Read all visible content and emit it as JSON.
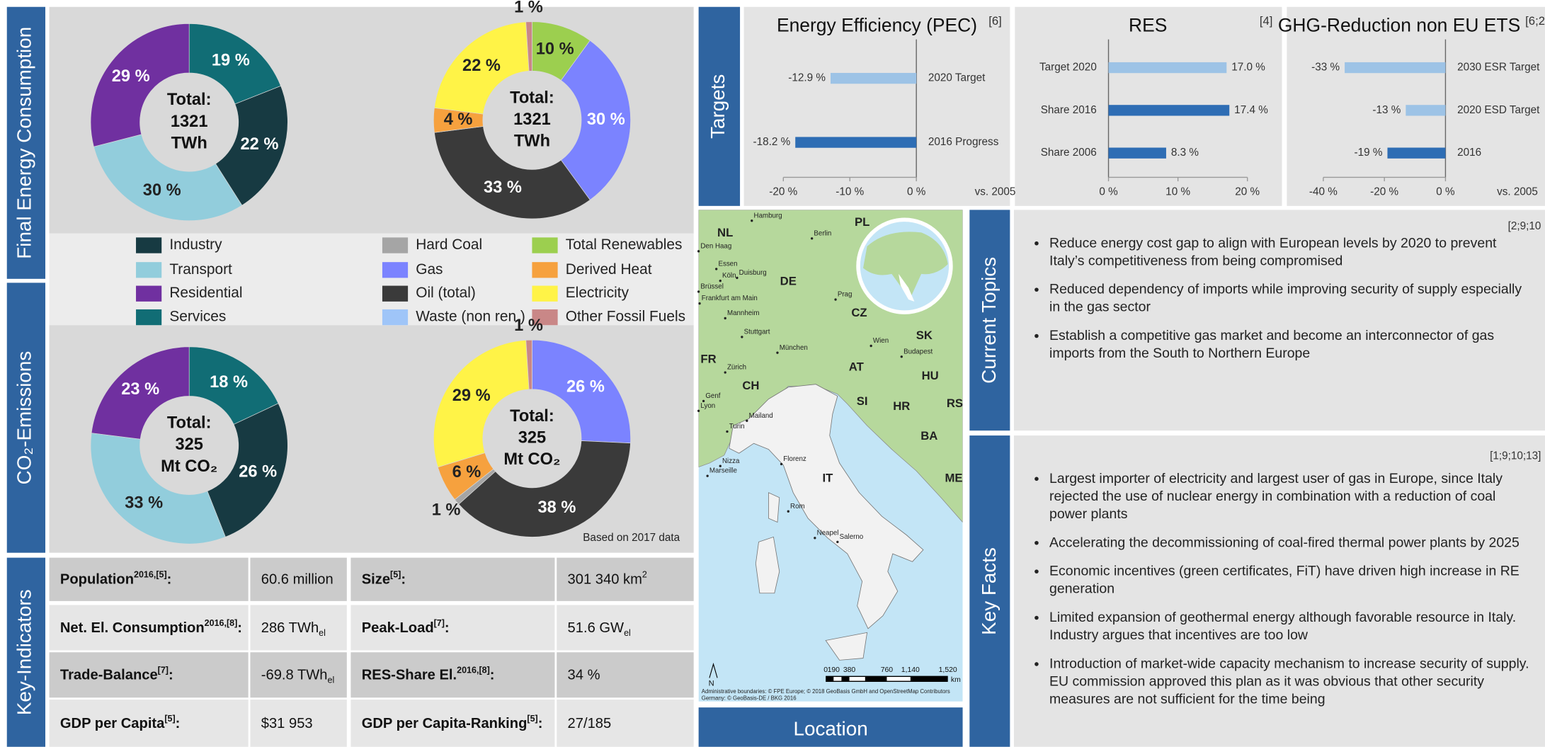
{
  "sections": {
    "final_energy": "Final Energy Consumption",
    "co2": "CO₂-Emissions",
    "key_indicators": "Key-Indicators",
    "targets": "Targets",
    "current_topics": "Current Topics",
    "key_facts": "Key Facts",
    "location": "Location"
  },
  "legend": [
    {
      "name": "Industry",
      "color": "#173a42"
    },
    {
      "name": "Transport",
      "color": "#92cddc"
    },
    {
      "name": "Residential",
      "color": "#7030a0"
    },
    {
      "name": "Services",
      "color": "#116d75"
    },
    {
      "name": "Hard Coal",
      "color": "#a5a5a5"
    },
    {
      "name": "Gas",
      "color": "#7b83ff"
    },
    {
      "name": "Oil (total)",
      "color": "#3a3a3a"
    },
    {
      "name": "Waste (non ren.)",
      "color": "#9fc5f8"
    },
    {
      "name": "Total Renewables",
      "color": "#9ccf4f"
    },
    {
      "name": "Derived Heat",
      "color": "#f6a13e"
    },
    {
      "name": "Electricity",
      "color": "#fff347"
    },
    {
      "name": "Other Fossil Fuels",
      "color": "#c98787"
    }
  ],
  "chart_data": [
    {
      "type": "pie",
      "labels": [
        "Services",
        "Industry",
        "Transport",
        "Residential"
      ],
      "values": [
        19,
        22,
        30,
        29
      ],
      "value_labels": [
        "19 %",
        "22 %",
        "30 %",
        "29 %"
      ],
      "colors": [
        "#116d75",
        "#173a42",
        "#92cddc",
        "#7030a0"
      ],
      "center_label": [
        "Total:",
        "1321",
        "TWh"
      ]
    },
    {
      "type": "pie",
      "labels": [
        "Total Renewables",
        "Gas",
        "Oil (total)",
        "Derived Heat",
        "Electricity",
        "Other Fossil Fuels"
      ],
      "values": [
        10,
        30,
        33,
        4,
        22,
        1
      ],
      "value_labels": [
        "10 %",
        "30 %",
        "33 %",
        "4 %",
        "22 %",
        "1 %"
      ],
      "colors": [
        "#9ccf4f",
        "#7b83ff",
        "#3a3a3a",
        "#f6a13e",
        "#fff347",
        "#c98787"
      ],
      "center_label": [
        "Total:",
        "1321",
        "TWh"
      ]
    },
    {
      "type": "pie",
      "labels": [
        "Services",
        "Industry",
        "Transport",
        "Residential"
      ],
      "values": [
        18,
        26,
        33,
        23
      ],
      "value_labels": [
        "18 %",
        "26 %",
        "33 %",
        "23 %"
      ],
      "colors": [
        "#116d75",
        "#173a42",
        "#92cddc",
        "#7030a0"
      ],
      "center_label": [
        "Total:",
        "325",
        "Mt CO₂"
      ]
    },
    {
      "type": "pie",
      "labels": [
        "Gas",
        "Oil (total)",
        "Hard Coal",
        "Derived Heat",
        "Electricity",
        "Other Fossil Fuels"
      ],
      "values": [
        26,
        38,
        1,
        6,
        29,
        1
      ],
      "value_labels": [
        "26 %",
        "38 %",
        "1 %",
        "6 %",
        "29 %",
        "1 %"
      ],
      "colors": [
        "#7b83ff",
        "#3a3a3a",
        "#a5a5a5",
        "#f6a13e",
        "#fff347",
        "#c98787"
      ],
      "center_label": [
        "Total:",
        "325",
        "Mt CO₂"
      ],
      "note": "Based on 2017 data"
    },
    {
      "type": "bar",
      "title": "Energy Efficiency (PEC)",
      "ref": "[6]",
      "categories": [
        "2020 Target",
        "2016 Progress"
      ],
      "values": [
        -12.9,
        -18.2
      ],
      "value_labels": [
        "-12.9 %",
        "-18.2 %"
      ],
      "colors": [
        "#9dc3e6",
        "#2e6db4"
      ],
      "xlim": [
        -20,
        0
      ],
      "xticks": [
        {
          "value": -20,
          "label": "-20 %"
        },
        {
          "value": -10,
          "label": "-10 %"
        },
        {
          "value": 0,
          "label": "0 %"
        }
      ],
      "note": "vs. 2005"
    },
    {
      "type": "bar",
      "title": "RES",
      "ref": "[4]",
      "categories": [
        "Target 2020",
        "Share 2016",
        "Share 2006"
      ],
      "values": [
        17.0,
        17.4,
        8.3
      ],
      "value_labels": [
        "17.0 %",
        "17.4 %",
        "8.3 %"
      ],
      "colors": [
        "#9dc3e6",
        "#2e6db4",
        "#2e6db4"
      ],
      "xlim": [
        0,
        20
      ],
      "xticks": [
        {
          "value": 0,
          "label": "0 %"
        },
        {
          "value": 10,
          "label": "10 %"
        },
        {
          "value": 20,
          "label": "20 %"
        }
      ]
    },
    {
      "type": "bar",
      "title": "GHG-Reduction non EU ETS",
      "ref": "[6;2",
      "categories": [
        "2030 ESR Target",
        "2020 ESD Target",
        "2016"
      ],
      "values": [
        -33,
        -13,
        -19
      ],
      "value_labels": [
        "-33 %",
        "-13 %",
        "-19 %"
      ],
      "colors": [
        "#9dc3e6",
        "#9dc3e6",
        "#2e6db4"
      ],
      "xlim": [
        -40,
        0
      ],
      "xticks": [
        {
          "value": -40,
          "label": "-40 %"
        },
        {
          "value": -20,
          "label": "-20 %"
        },
        {
          "value": 0,
          "label": "0 %"
        }
      ],
      "note": "vs. 2005"
    }
  ],
  "key_indicators": {
    "rows": [
      [
        {
          "text": "Population",
          "sup": "2016,[5]",
          "suffix": ":"
        },
        {
          "text": "60.6 million"
        },
        {
          "text": "Size",
          "sup": "[5]",
          "suffix": ":"
        },
        {
          "text": "301 340 km",
          "sup": "2"
        }
      ],
      [
        {
          "text": "Net. El. Consumption",
          "sup": "2016,[8]",
          "suffix": ":"
        },
        {
          "text": "286 TWh",
          "sub": "el"
        },
        {
          "text": "Peak-Load",
          "sup": "[7]",
          "suffix": ":"
        },
        {
          "text": "51.6 GW",
          "sub": "el"
        }
      ],
      [
        {
          "text": "Trade-Balance",
          "sup": "[7]",
          "suffix": ":"
        },
        {
          "text": "-69.8 TWh",
          "sub": "el"
        },
        {
          "text": "RES-Share El.",
          "sup": "2016,[8]",
          "suffix": ":"
        },
        {
          "text": "34 %"
        }
      ],
      [
        {
          "text": "GDP per Capita",
          "sup": "[5]",
          "suffix": ":"
        },
        {
          "text": "$31 953"
        },
        {
          "text": "GDP per Capita-Ranking",
          "sup": "[5]",
          "suffix": ":"
        },
        {
          "text": "27/185"
        }
      ]
    ]
  },
  "current_topics": {
    "ref": "[2;9;10",
    "items": [
      "Reduce energy cost gap to align with European levels by 2020 to prevent Italy’s competitiveness from being compromised",
      "Reduced dependency of imports while improving security of supply especially in the gas sector",
      "Establish a competitive gas market and become an interconnector of gas imports from the South to Northern Europe"
    ]
  },
  "key_facts": {
    "ref": "[1;9;10;13]",
    "items": [
      "Largest importer of electricity and largest user of gas in Europe, since Italy rejected the use of nuclear energy in combination with a reduction of coal power plants",
      "Accelerating the decommissioning of coal-fired thermal power plants by 2025",
      "Economic incentives (green certificates, FiT) have driven high increase in RE generation",
      "Limited expansion of geothermal energy although favorable resource in Italy. Industry argues that incentives are too low",
      "Introduction of market-wide capacity mechanism to increase security of supply. EU commission approved this plan as it was obvious that other security measures are not sufficient for the time being"
    ]
  },
  "map": {
    "countries": [
      "NL",
      "DE",
      "PL",
      "CZ",
      "SK",
      "AT",
      "HU",
      "FR",
      "CH",
      "SI",
      "HR",
      "RS",
      "BA",
      "ME",
      "IT"
    ],
    "cities": [
      "Hamburg",
      "Berlin",
      "Den Haag",
      "Essen",
      "Köln",
      "Duisburg",
      "Brüssel",
      "Frankfurt am Main",
      "Mannheim",
      "Prag",
      "Stuttgart",
      "München",
      "Wien",
      "Budapest",
      "Zürich",
      "Genf",
      "Lyon",
      "Mailand",
      "Turin",
      "Florenz",
      "Nizza",
      "Marseille",
      "Rom",
      "Neapel",
      "Salerno"
    ],
    "scale": [
      "0",
      "190",
      "380",
      "760",
      "1,140",
      "1,520"
    ],
    "unit": "km",
    "north": "N",
    "attribution": [
      "Administrative boundaries: © FPE Europe; © 2018 GeoBasis GmbH and OpenStreetMap Contributors",
      "Germany: © GeoBasis-DE / BKG 2016"
    ]
  }
}
